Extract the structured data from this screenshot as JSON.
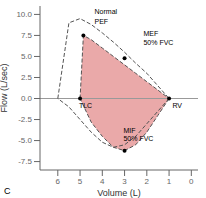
{
  "chart_data": {
    "type": "line",
    "xlabel": "Volume (L)",
    "ylabel": "Flow (L/sec)",
    "xlim": [
      6.8,
      -0.3
    ],
    "ylim": [
      -8.5,
      11.0
    ],
    "xticks": [
      6,
      5,
      4,
      3,
      2,
      1,
      0
    ],
    "yticks": [
      -7.5,
      {
        "value": -5.0,
        "label": "-5.0"
      },
      -2.5,
      {
        "value": 0.0,
        "label": "0.0"
      },
      2.5,
      {
        "value": 5.0,
        "label": "5.0"
      },
      7.5,
      {
        "value": 10.0,
        "label": "10.0"
      }
    ],
    "grid": false,
    "series": [
      {
        "type": "area",
        "color": "#e8a0a0",
        "x": [
          5.0,
          4.85,
          4.5,
          4.0,
          3.5,
          3.0,
          2.5,
          2.0,
          1.5,
          1.0
        ],
        "values": [
          0.0,
          7.5,
          7.0,
          6.0,
          5.0,
          4.0,
          3.0,
          2.0,
          1.0,
          0.0
        ]
      },
      {
        "type": "area",
        "color": "#e8a0a0",
        "x": [
          1.0,
          1.5,
          2.0,
          2.5,
          3.0,
          3.5,
          4.0,
          4.5,
          5.0
        ],
        "values": [
          0.0,
          -2.0,
          -4.0,
          -5.5,
          -6.2,
          -5.8,
          -4.5,
          -2.8,
          0.0
        ]
      },
      {
        "type": "line",
        "color": "#555555",
        "line_style": "dashed",
        "x": [
          5.0,
          4.85,
          4.5,
          4.0,
          3.5,
          3.0,
          2.5,
          2.0,
          1.5,
          1.0
        ],
        "values": [
          0.0,
          7.5,
          7.0,
          6.0,
          5.0,
          4.0,
          3.0,
          2.0,
          1.0,
          0.0
        ]
      },
      {
        "type": "line",
        "color": "#555555",
        "line_style": "dashed",
        "x": [
          1.0,
          1.5,
          2.0,
          2.5,
          3.0,
          3.5,
          4.0,
          4.5,
          5.0
        ],
        "values": [
          0.0,
          -2.0,
          -4.0,
          -5.5,
          -6.2,
          -5.8,
          -4.5,
          -2.8,
          0.0
        ]
      },
      {
        "type": "line",
        "color": "#555555",
        "line_style": "dashed",
        "x": [
          6.0,
          5.5,
          5.0,
          4.5,
          4.0,
          3.5,
          3.0,
          2.5,
          2.0,
          1.5,
          1.0
        ],
        "values": [
          0.0,
          9.0,
          9.5,
          8.8,
          7.8,
          6.7,
          5.5,
          4.2,
          3.0,
          1.5,
          0.0
        ]
      },
      {
        "type": "line",
        "color": "#555555",
        "line_style": "dashed",
        "x": [
          1.0,
          1.5,
          2.0,
          2.5,
          3.0,
          3.5,
          4.0,
          4.5,
          5.0,
          5.5,
          6.0
        ],
        "values": [
          0.0,
          -1.5,
          -3.0,
          -4.5,
          -5.5,
          -5.8,
          -5.2,
          -4.0,
          -2.5,
          -1.0,
          0.0
        ]
      },
      {
        "type": "scatter",
        "color": "#000000",
        "marker": "circle",
        "x": [
          4.85,
          3.0,
          3.0,
          5.0,
          1.0
        ],
        "values": [
          7.5,
          4.8,
          -6.2,
          0,
          0
        ]
      }
    ],
    "annotations": [
      {
        "text": "Normal",
        "x": 4.35,
        "y": 10.6
      },
      {
        "text": "PEF",
        "x": 4.35,
        "y": 9.5
      },
      {
        "text": "MEF",
        "x": 2.15,
        "y": 8.0
      },
      {
        "text": "50% FVC",
        "x": 2.15,
        "y": 6.9
      },
      {
        "text": "MIF",
        "x": 3.05,
        "y": -3.5
      },
      {
        "text": "50% FVC",
        "x": 3.05,
        "y": -4.5
      },
      {
        "text": "TLC",
        "x": 5.05,
        "y": -0.5
      },
      {
        "text": "RV",
        "x": 0.85,
        "y": -0.5
      },
      {
        "text": "C"
      }
    ]
  }
}
